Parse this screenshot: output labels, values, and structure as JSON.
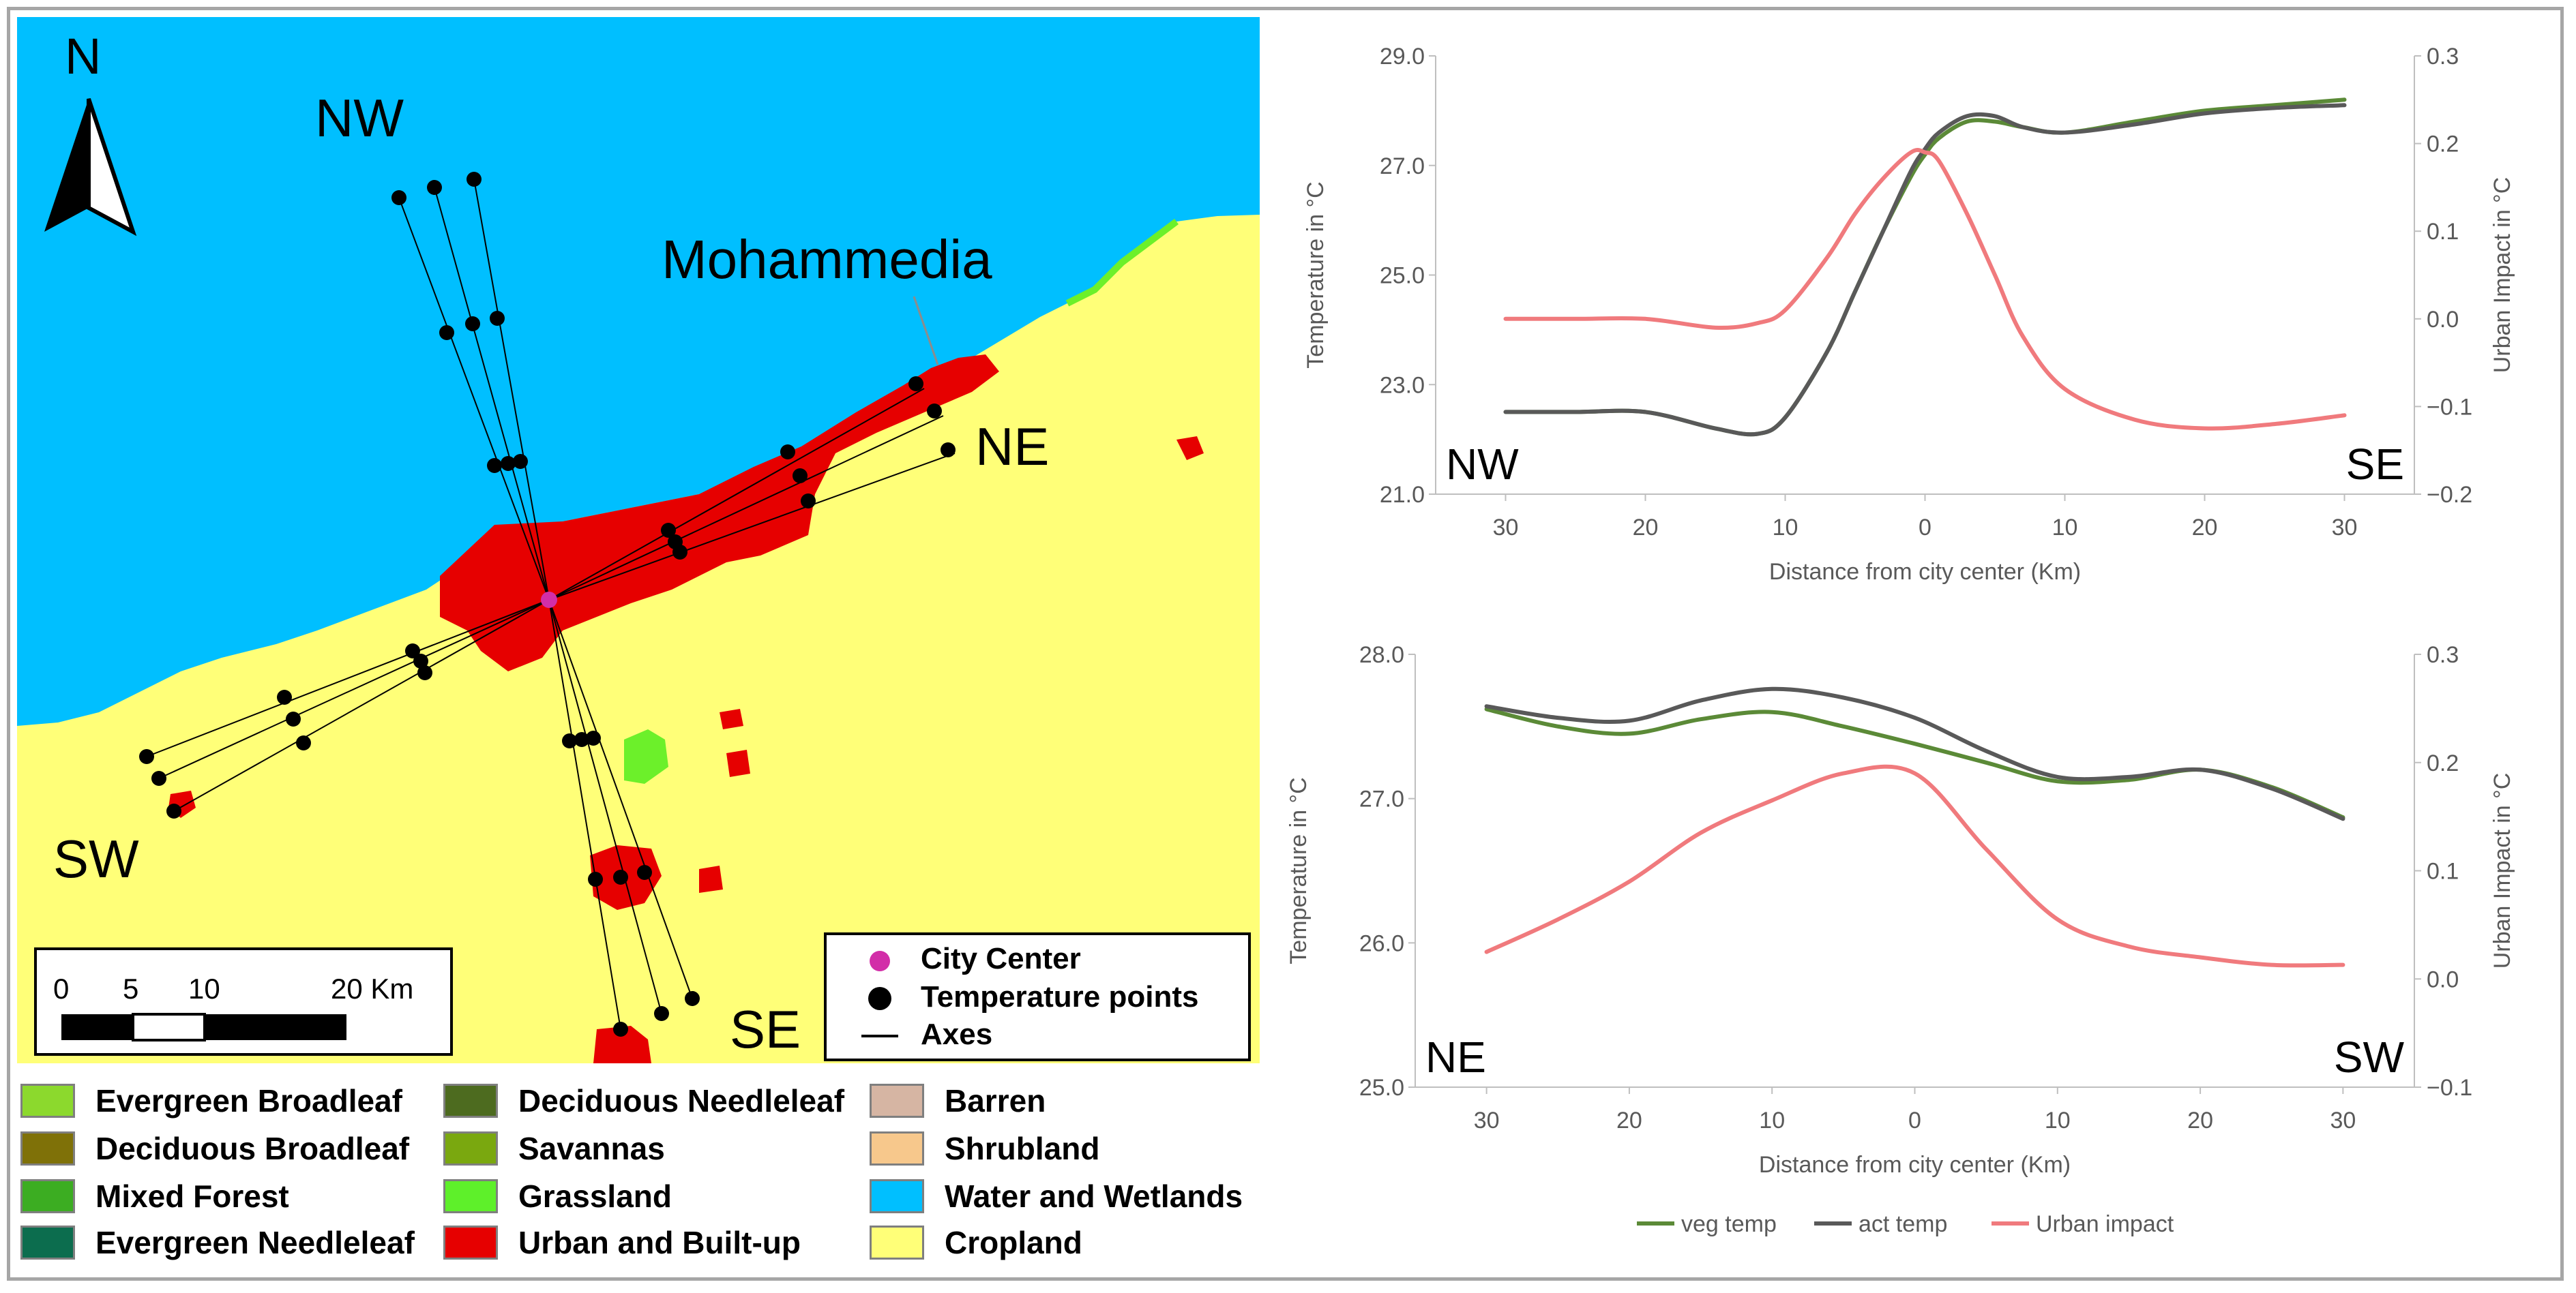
{
  "map": {
    "north_label": "N",
    "city_label": "Mohammedia",
    "direction_labels": {
      "nw": "NW",
      "ne": "NE",
      "sw": "SW",
      "se": "SE"
    },
    "scale_bar": {
      "ticks": [
        "0",
        "5",
        "10",
        "20 Km"
      ]
    },
    "legend": {
      "city_center": "City Center",
      "temperature_points": "Temperature points",
      "axes": "Axes"
    },
    "colors": {
      "water": "#00bfff",
      "cropland": "#ffff78",
      "urban": "#e60000",
      "grassland": "#6cf02a",
      "city_center": "#d22ea8",
      "point": "#000000"
    }
  },
  "land_cover_legend": [
    {
      "label": "Evergreen Broadleaf",
      "color": "#8cd92d"
    },
    {
      "label": "Deciduous Broadleaf",
      "color": "#7f7108"
    },
    {
      "label": "Mixed Forest",
      "color": "#3cad22"
    },
    {
      "label": "Evergreen Needleleaf",
      "color": "#0c6d4e"
    },
    {
      "label": "Deciduous Needleleaf",
      "color": "#4d6b1f"
    },
    {
      "label": "Savannas",
      "color": "#7aa80f"
    },
    {
      "label": "Grassland",
      "color": "#5ef02a"
    },
    {
      "label": "Urban and Built-up",
      "color": "#e60000"
    },
    {
      "label": "Barren",
      "color": "#d6b5a3"
    },
    {
      "label": "Shrubland",
      "color": "#f7c88c"
    },
    {
      "label": "Water and Wetlands",
      "color": "#00bfff"
    },
    {
      "label": "Cropland",
      "color": "#ffff78"
    }
  ],
  "legend_bottom": [
    {
      "label": "veg temp",
      "color": "#5b8a37"
    },
    {
      "label": "act temp",
      "color": "#595959"
    },
    {
      "label": "Urban impact",
      "color": "#f07a7d"
    }
  ],
  "chart_data": [
    {
      "type": "line",
      "xlabel": "Distance from city center (Km)",
      "ylabel": "Temperature in °C",
      "y2label": "Urban Impact in °C",
      "x_tick_labels": [
        "30",
        "20",
        "10",
        "0",
        "10",
        "20",
        "30"
      ],
      "x": [
        -30,
        -25,
        -20,
        -15,
        -12,
        -10,
        -7,
        -5,
        -3,
        -1,
        0,
        1,
        3,
        5,
        7,
        10,
        15,
        20,
        25,
        30
      ],
      "ylim": [
        21.0,
        29.0
      ],
      "y_ticks": [
        "21.0",
        "23.0",
        "25.0",
        "27.0",
        "29.0"
      ],
      "y2lim": [
        -0.2,
        0.3
      ],
      "y2_ticks": [
        "−0.2",
        "−0.1",
        "0.0",
        "0.1",
        "0.2",
        "0.3"
      ],
      "corner_labels": {
        "left": "NW",
        "right": "SE"
      },
      "series": [
        {
          "name": "veg temp",
          "axis": "left",
          "color": "#5b8a37",
          "values": [
            22.5,
            22.5,
            22.5,
            22.2,
            22.1,
            22.4,
            23.6,
            24.7,
            25.8,
            26.8,
            27.2,
            27.5,
            27.8,
            27.8,
            27.7,
            27.6,
            27.8,
            28.0,
            28.1,
            28.2
          ]
        },
        {
          "name": "act temp",
          "axis": "left",
          "color": "#595959",
          "values": [
            22.5,
            22.5,
            22.5,
            22.2,
            22.1,
            22.4,
            23.6,
            24.7,
            25.8,
            26.9,
            27.3,
            27.6,
            27.9,
            27.9,
            27.7,
            27.6,
            27.75,
            27.95,
            28.05,
            28.1
          ]
        },
        {
          "name": "Urban impact",
          "axis": "right",
          "color": "#f07a7d",
          "values": [
            0.0,
            0.0,
            0.0,
            -0.01,
            -0.005,
            0.01,
            0.07,
            0.12,
            0.16,
            0.19,
            0.19,
            0.18,
            0.12,
            0.05,
            -0.02,
            -0.08,
            -0.115,
            -0.125,
            -0.12,
            -0.11
          ]
        }
      ]
    },
    {
      "type": "line",
      "xlabel": "Distance from city center (Km)",
      "ylabel": "Temperature in °C",
      "y2label": "Urban Impact in °C",
      "x_tick_labels": [
        "30",
        "20",
        "10",
        "0",
        "10",
        "20",
        "30"
      ],
      "x": [
        -30,
        -25,
        -20,
        -15,
        -10,
        -5,
        0,
        5,
        10,
        15,
        20,
        25,
        30
      ],
      "ylim": [
        25.0,
        28.0
      ],
      "y_ticks": [
        "25.0",
        "26.0",
        "27.0",
        "28.0"
      ],
      "y2lim": [
        -0.1,
        0.3
      ],
      "y2_ticks": [
        "−0.1",
        "0.0",
        "0.1",
        "0.2",
        "0.3"
      ],
      "corner_labels": {
        "left": "NE",
        "right": "SW"
      },
      "series": [
        {
          "name": "veg temp",
          "axis": "left",
          "color": "#5b8a37",
          "values": [
            27.62,
            27.5,
            27.45,
            27.55,
            27.6,
            27.5,
            27.38,
            27.25,
            27.12,
            27.13,
            27.2,
            27.08,
            26.87
          ]
        },
        {
          "name": "act temp",
          "axis": "left",
          "color": "#595959",
          "values": [
            27.64,
            27.56,
            27.54,
            27.68,
            27.76,
            27.7,
            27.56,
            27.33,
            27.15,
            27.15,
            27.2,
            27.07,
            26.86
          ]
        },
        {
          "name": "Urban impact",
          "axis": "right",
          "color": "#f07a7d",
          "values": [
            0.025,
            0.055,
            0.09,
            0.135,
            0.165,
            0.19,
            0.19,
            0.12,
            0.055,
            0.03,
            0.02,
            0.013,
            0.013
          ]
        }
      ]
    }
  ]
}
